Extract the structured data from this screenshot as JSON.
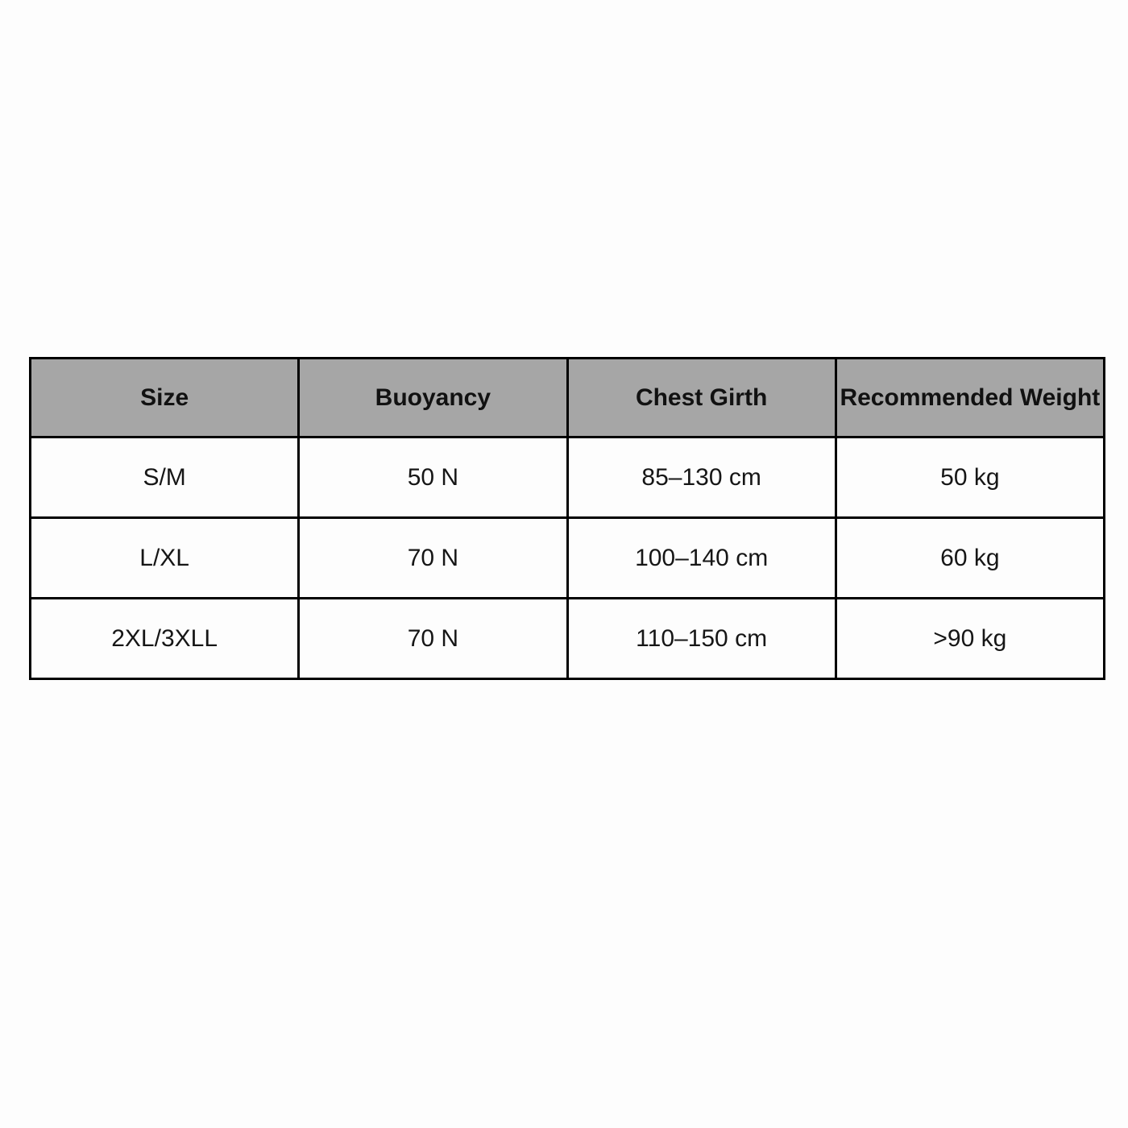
{
  "page": {
    "background_color": "#fdfdfd"
  },
  "table": {
    "colors": {
      "header_background": "#a6a6a6",
      "border": "#000000",
      "cell_background": "#fdfdfd",
      "text": "#161616"
    },
    "headers": [
      "Size",
      "Buoyancy",
      "Chest Girth",
      "Recommended Weight"
    ],
    "rows": [
      [
        "S/M",
        "50 N",
        "85–130 cm",
        "50 kg"
      ],
      [
        "L/XL",
        "70 N",
        "100–140 cm",
        "60 kg"
      ],
      [
        "2XL/3XLL",
        "70 N",
        "110–150 cm",
        ">90 kg"
      ]
    ]
  }
}
